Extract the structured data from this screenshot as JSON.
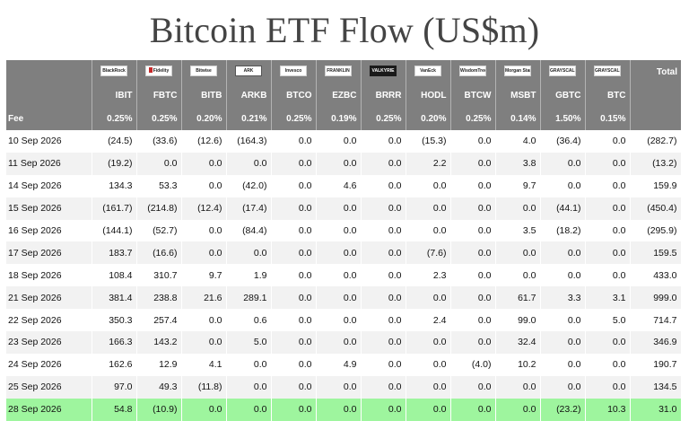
{
  "title": "Bitcoin ETF Flow (US$m)",
  "header": {
    "total_label": "Total",
    "fee_label": "Fee"
  },
  "funds": [
    {
      "ticker": "IBIT",
      "fee": "0.25%",
      "logo": "BlackRock",
      "logo_style": "plain"
    },
    {
      "ticker": "FBTC",
      "fee": "0.25%",
      "logo": "Fidelity",
      "logo_style": "red-mark"
    },
    {
      "ticker": "BITB",
      "fee": "0.20%",
      "logo": "Bitwise",
      "logo_style": "plain"
    },
    {
      "ticker": "ARKB",
      "fee": "0.21%",
      "logo": "ARK",
      "logo_style": "ark"
    },
    {
      "ticker": "BTCO",
      "fee": "0.25%",
      "logo": "Invesco",
      "logo_style": "plain"
    },
    {
      "ticker": "EZBC",
      "fee": "0.19%",
      "logo": "FRANKLIN",
      "logo_style": "plain"
    },
    {
      "ticker": "BRRR",
      "fee": "0.25%",
      "logo": "VALKYRIE",
      "logo_style": "black"
    },
    {
      "ticker": "HODL",
      "fee": "0.20%",
      "logo": "VanEck",
      "logo_style": "plain"
    },
    {
      "ticker": "BTCW",
      "fee": "0.25%",
      "logo": "WisdomTree",
      "logo_style": "plain"
    },
    {
      "ticker": "MSBT",
      "fee": "0.14%",
      "logo": "Morgan Stanley",
      "logo_style": "plain"
    },
    {
      "ticker": "GBTC",
      "fee": "1.50%",
      "logo": "GRAYSCALE",
      "logo_style": "plain"
    },
    {
      "ticker": "BTC",
      "fee": "0.15%",
      "logo": "GRAYSCALE",
      "logo_style": "plain"
    }
  ],
  "rows": [
    {
      "date": "10 Sep 2026",
      "values": [
        "(24.5)",
        "(33.6)",
        "(12.6)",
        "(164.3)",
        "0.0",
        "0.0",
        "0.0",
        "(15.3)",
        "0.0",
        "4.0",
        "(36.4)",
        "0.0"
      ],
      "total": "(282.7)"
    },
    {
      "date": "11 Sep 2026",
      "values": [
        "(19.2)",
        "0.0",
        "0.0",
        "0.0",
        "0.0",
        "0.0",
        "0.0",
        "2.2",
        "0.0",
        "3.8",
        "0.0",
        "0.0"
      ],
      "total": "(13.2)"
    },
    {
      "date": "14 Sep 2026",
      "values": [
        "134.3",
        "53.3",
        "0.0",
        "(42.0)",
        "0.0",
        "4.6",
        "0.0",
        "0.0",
        "0.0",
        "9.7",
        "0.0",
        "0.0"
      ],
      "total": "159.9"
    },
    {
      "date": "15 Sep 2026",
      "values": [
        "(161.7)",
        "(214.8)",
        "(12.4)",
        "(17.4)",
        "0.0",
        "0.0",
        "0.0",
        "0.0",
        "0.0",
        "0.0",
        "(44.1)",
        "0.0"
      ],
      "total": "(450.4)"
    },
    {
      "date": "16 Sep 2026",
      "values": [
        "(144.1)",
        "(52.7)",
        "0.0",
        "(84.4)",
        "0.0",
        "0.0",
        "0.0",
        "0.0",
        "0.0",
        "3.5",
        "(18.2)",
        "0.0"
      ],
      "total": "(295.9)"
    },
    {
      "date": "17 Sep 2026",
      "values": [
        "183.7",
        "(16.6)",
        "0.0",
        "0.0",
        "0.0",
        "0.0",
        "0.0",
        "(7.6)",
        "0.0",
        "0.0",
        "0.0",
        "0.0"
      ],
      "total": "159.5"
    },
    {
      "date": "18 Sep 2026",
      "values": [
        "108.4",
        "310.7",
        "9.7",
        "1.9",
        "0.0",
        "0.0",
        "0.0",
        "2.3",
        "0.0",
        "0.0",
        "0.0",
        "0.0"
      ],
      "total": "433.0"
    },
    {
      "date": "21 Sep 2026",
      "values": [
        "381.4",
        "238.8",
        "21.6",
        "289.1",
        "0.0",
        "0.0",
        "0.0",
        "0.0",
        "0.0",
        "61.7",
        "3.3",
        "3.1"
      ],
      "total": "999.0"
    },
    {
      "date": "22 Sep 2026",
      "values": [
        "350.3",
        "257.4",
        "0.0",
        "0.6",
        "0.0",
        "0.0",
        "0.0",
        "2.4",
        "0.0",
        "99.0",
        "0.0",
        "5.0"
      ],
      "total": "714.7"
    },
    {
      "date": "23 Sep 2026",
      "values": [
        "166.3",
        "143.2",
        "0.0",
        "5.0",
        "0.0",
        "0.0",
        "0.0",
        "0.0",
        "0.0",
        "32.4",
        "0.0",
        "0.0"
      ],
      "total": "346.9"
    },
    {
      "date": "24 Sep 2026",
      "values": [
        "162.6",
        "12.9",
        "4.1",
        "0.0",
        "0.0",
        "4.9",
        "0.0",
        "0.0",
        "(4.0)",
        "10.2",
        "0.0",
        "0.0"
      ],
      "total": "190.7"
    },
    {
      "date": "25 Sep 2026",
      "values": [
        "97.0",
        "49.3",
        "(11.8)",
        "0.0",
        "0.0",
        "0.0",
        "0.0",
        "0.0",
        "0.0",
        "0.0",
        "0.0",
        "0.0"
      ],
      "total": "134.5"
    },
    {
      "date": "28 Sep 2026",
      "values": [
        "54.8",
        "(10.9)",
        "0.0",
        "0.0",
        "0.0",
        "0.0",
        "0.0",
        "0.0",
        "0.0",
        "0.0",
        "(23.2)",
        "10.3"
      ],
      "total": "31.0",
      "highlight": true
    }
  ],
  "colors": {
    "header_bg": "#7f7f7f",
    "negative": "#e01010",
    "zero": "#c8c8c8",
    "highlight_row": "#9ef59e",
    "stripe": "#f2f2f2"
  }
}
